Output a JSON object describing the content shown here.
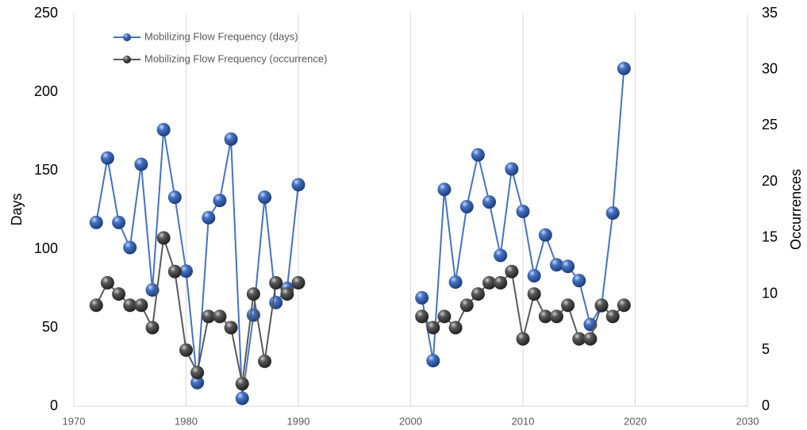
{
  "chart_data": {
    "type": "line",
    "x": [
      1972,
      1973,
      1974,
      1975,
      1976,
      1977,
      1978,
      1979,
      1980,
      1981,
      1982,
      1983,
      1984,
      1985,
      1986,
      1987,
      1988,
      1989,
      1990,
      1991,
      1992,
      1993,
      1994,
      1995,
      1996,
      1997,
      1998,
      1999,
      2000,
      2001,
      2002,
      2003,
      2004,
      2005,
      2006,
      2007,
      2008,
      2009,
      2010,
      2011,
      2012,
      2013,
      2014,
      2015,
      2016,
      2017,
      2018,
      2019
    ],
    "series": [
      {
        "name": "Mobilizing Flow Frequency (days)",
        "color": "#4472c4",
        "values": [
          117,
          158,
          117,
          101,
          154,
          74,
          176,
          133,
          86,
          15,
          120,
          131,
          170,
          5,
          58,
          133,
          66,
          75,
          141,
          null,
          null,
          null,
          null,
          null,
          null,
          null,
          null,
          null,
          null,
          69,
          29,
          138,
          79,
          127,
          160,
          130,
          96,
          151,
          124,
          83,
          109,
          90,
          89,
          80,
          52,
          64,
          123,
          215
        ]
      },
      {
        "name": "Mobilizing Flow Frequency (occurrence)",
        "color": "#595959",
        "axis": "y2",
        "values": [
          9,
          11,
          10,
          9,
          9,
          7,
          15,
          12,
          5,
          3,
          8,
          8,
          7,
          2,
          10,
          4,
          11,
          10,
          11,
          null,
          null,
          null,
          null,
          null,
          null,
          null,
          null,
          null,
          null,
          8,
          7,
          8,
          7,
          9,
          10,
          11,
          11,
          12,
          6,
          10,
          8,
          8,
          9,
          6,
          6,
          9,
          8,
          9
        ]
      }
    ],
    "y_label": "Days",
    "y2_label": "Occurrences",
    "xlim": [
      1970,
      2030
    ],
    "xticks": [
      1970,
      1980,
      1990,
      2000,
      2010,
      2020,
      2030
    ],
    "ylim": [
      0,
      250
    ],
    "yticks": [
      0,
      50,
      100,
      150,
      200,
      250
    ],
    "y2lim": [
      0,
      35
    ],
    "y2ticks": [
      0,
      5,
      10,
      15,
      20,
      25,
      30,
      35
    ],
    "grid": true,
    "legend": "upper left"
  }
}
